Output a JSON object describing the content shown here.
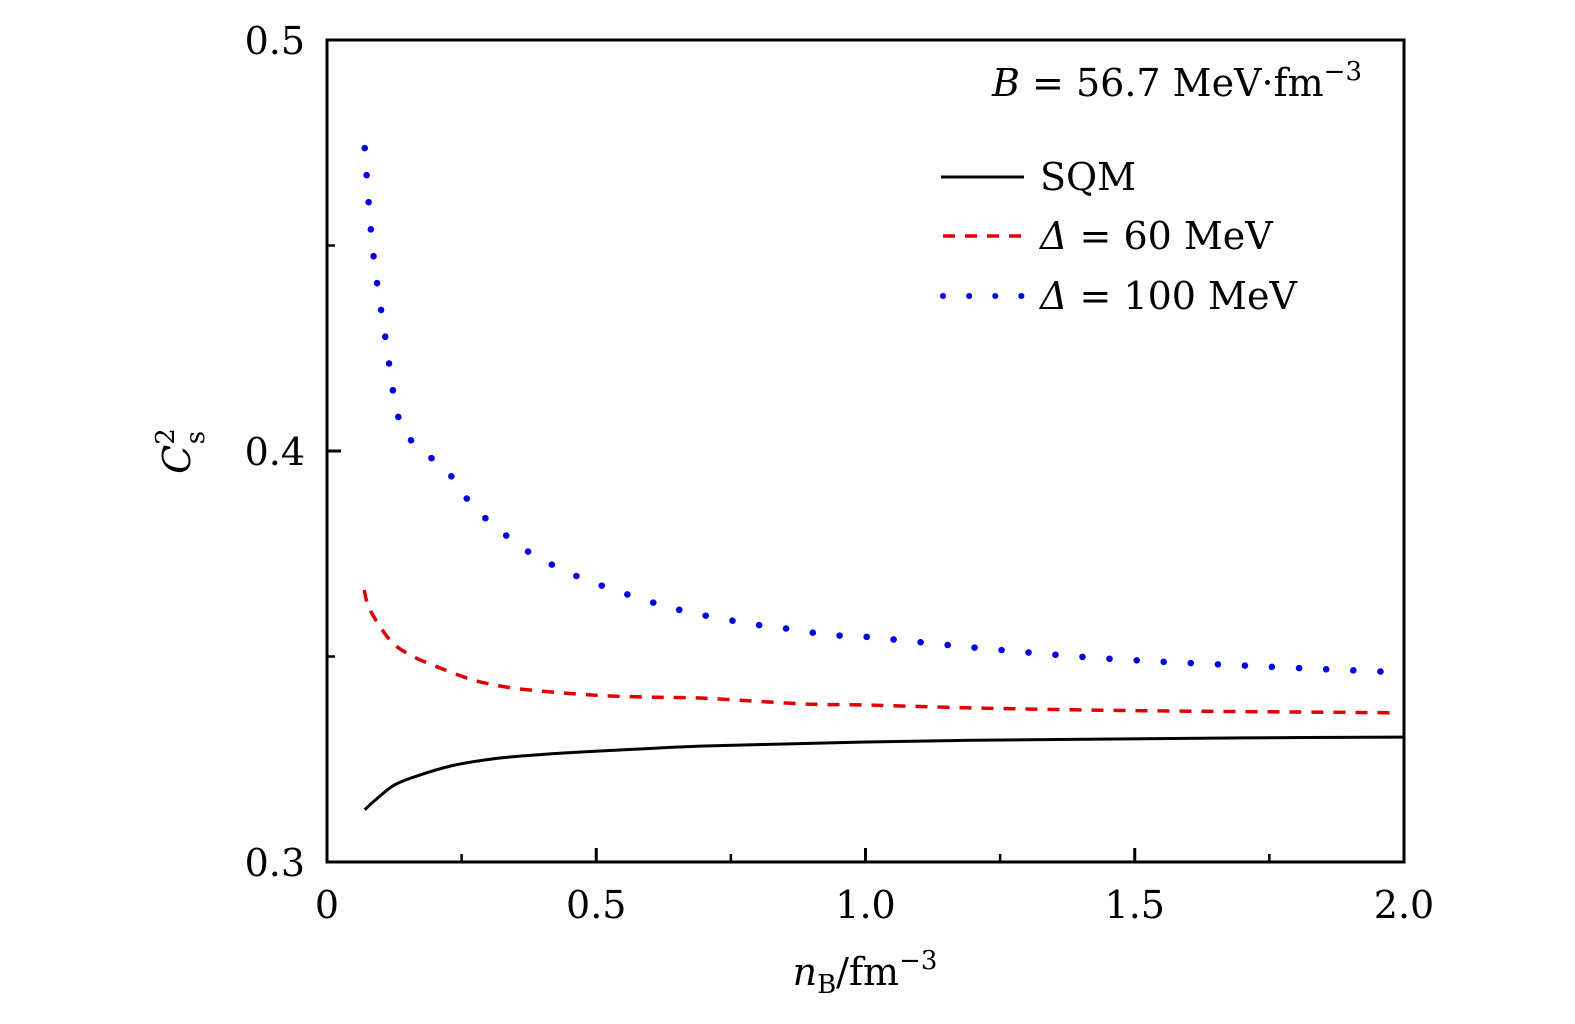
{
  "chart_data": {
    "type": "line",
    "title": "",
    "annotation": {
      "symbol": "B",
      "text": " = 56.7 MeV·fm",
      "superscript": "−3"
    },
    "xlabel": {
      "main": "n",
      "sub": "B",
      "unit": "/fm",
      "sup": "−3"
    },
    "ylabel": {
      "main": "C",
      "sub": "s",
      "sup": "2"
    },
    "xlim": [
      0,
      2.0
    ],
    "ylim": [
      0.3,
      0.5
    ],
    "xticks": [
      0,
      0.5,
      1.0,
      1.5,
      2.0
    ],
    "xtick_labels": [
      "0",
      "0.5",
      "1.0",
      "1.5",
      "2.0"
    ],
    "x_minor_ticks": [
      0.25,
      0.75,
      1.25,
      1.75
    ],
    "yticks": [
      0.3,
      0.4,
      0.5
    ],
    "ytick_labels": [
      "0.3",
      "0.4",
      "0.5"
    ],
    "y_minor_ticks": [
      0.35,
      0.45
    ],
    "grid": false,
    "legend_position": "top-right",
    "series": [
      {
        "name": "SQM",
        "legend_symbol": "",
        "legend_text": "SQM",
        "color": "#000000",
        "style": "solid",
        "x": [
          0.07,
          0.09,
          0.126,
          0.173,
          0.238,
          0.321,
          0.414,
          0.507,
          0.609,
          0.693,
          0.85,
          1.0,
          1.2,
          1.435,
          1.7,
          2.0
        ],
        "y": [
          0.3127,
          0.3151,
          0.3188,
          0.3212,
          0.3236,
          0.3253,
          0.3263,
          0.327,
          0.3277,
          0.3282,
          0.3287,
          0.3292,
          0.3296,
          0.3299,
          0.3302,
          0.3304
        ]
      },
      {
        "name": "Δ = 60 MeV",
        "legend_symbol": "Δ",
        "legend_text": " = 60 MeV",
        "color": "#e00000",
        "style": "dashed",
        "x": [
          0.069,
          0.08,
          0.117,
          0.154,
          0.21,
          0.271,
          0.331,
          0.396,
          0.461,
          0.526,
          0.609,
          0.693,
          0.786,
          0.897,
          1.0,
          1.2,
          1.4,
          1.6,
          1.8,
          1.99
        ],
        "y": [
          0.3662,
          0.3613,
          0.354,
          0.3504,
          0.3472,
          0.3443,
          0.3426,
          0.3416,
          0.3409,
          0.3404,
          0.3401,
          0.3399,
          0.3392,
          0.3384,
          0.3382,
          0.3375,
          0.337,
          0.3367,
          0.3365,
          0.3363
        ]
      },
      {
        "name": "Δ = 100 MeV",
        "legend_symbol": "Δ",
        "legend_text": " = 100 MeV",
        "color": "#0000e0",
        "style": "dotted",
        "x": [
          0.07,
          0.085,
          0.109,
          0.131,
          0.16,
          0.221,
          0.251,
          0.288,
          0.331,
          0.375,
          0.423,
          0.472,
          0.522,
          0.572,
          0.622,
          0.672,
          0.724,
          0.776,
          0.826,
          0.878,
          0.93,
          1.0,
          1.2,
          1.435,
          1.7,
          1.98
        ],
        "y": [
          0.4737,
          0.449,
          0.427,
          0.409,
          0.402,
          0.3954,
          0.3898,
          0.3844,
          0.3796,
          0.3754,
          0.372,
          0.3691,
          0.3667,
          0.3645,
          0.3625,
          0.3608,
          0.3594,
          0.3582,
          0.3572,
          0.3564,
          0.3552,
          0.3548,
          0.3522,
          0.3496,
          0.3478,
          0.3462
        ]
      }
    ]
  }
}
